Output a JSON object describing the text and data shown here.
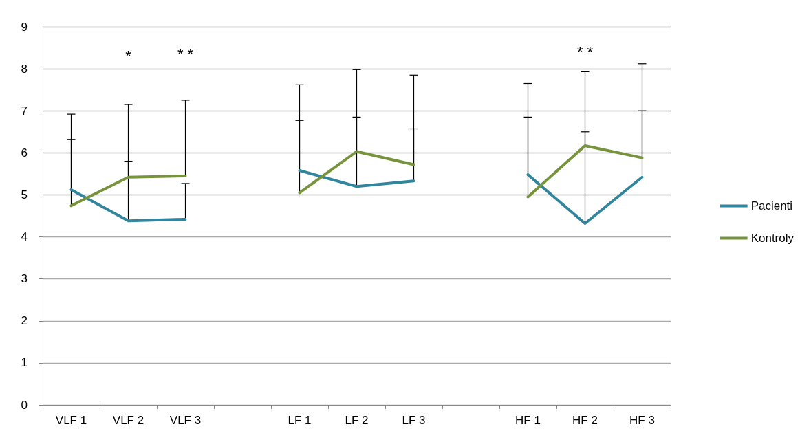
{
  "chart_data": {
    "type": "line",
    "categories": [
      "VLF 1",
      "VLF 2",
      "VLF 3",
      null,
      "LF 1",
      "LF 2",
      "LF 3",
      null,
      "HF 1",
      "HF 2",
      "HF 3"
    ],
    "series": [
      {
        "name": "Pacienti",
        "color": "#31859c",
        "values": [
          5.12,
          4.38,
          4.42,
          null,
          5.58,
          5.2,
          5.33,
          null,
          5.48,
          4.32,
          5.42
        ],
        "errors": [
          [
            5.12,
            6.32
          ],
          [
            4.38,
            5.8
          ],
          [
            4.42,
            5.27
          ],
          null,
          [
            5.58,
            6.77
          ],
          [
            5.2,
            6.85
          ],
          [
            5.33,
            6.57
          ],
          null,
          [
            5.48,
            6.85
          ],
          [
            4.32,
            6.5
          ],
          [
            5.42,
            7.0
          ]
        ]
      },
      {
        "name": "Kontroly",
        "color": "#77933c",
        "values": [
          4.74,
          5.42,
          5.45,
          null,
          5.05,
          6.03,
          5.72,
          null,
          4.95,
          6.17,
          5.88
        ],
        "errors": [
          [
            4.74,
            6.92
          ],
          [
            5.42,
            7.15
          ],
          [
            5.45,
            7.25
          ],
          null,
          [
            5.05,
            7.62
          ],
          [
            6.03,
            7.98
          ],
          [
            5.72,
            7.85
          ],
          null,
          [
            4.95,
            7.65
          ],
          [
            6.17,
            7.93
          ],
          [
            5.88,
            8.12
          ]
        ]
      }
    ],
    "ylim": [
      0,
      9
    ],
    "yticks": [
      0,
      1,
      2,
      3,
      4,
      5,
      6,
      7,
      8,
      9
    ],
    "grid": "y",
    "legend": "right",
    "marker": "none",
    "line_style": "solid",
    "annotations": [
      "*",
      "* *",
      "* *"
    ]
  }
}
